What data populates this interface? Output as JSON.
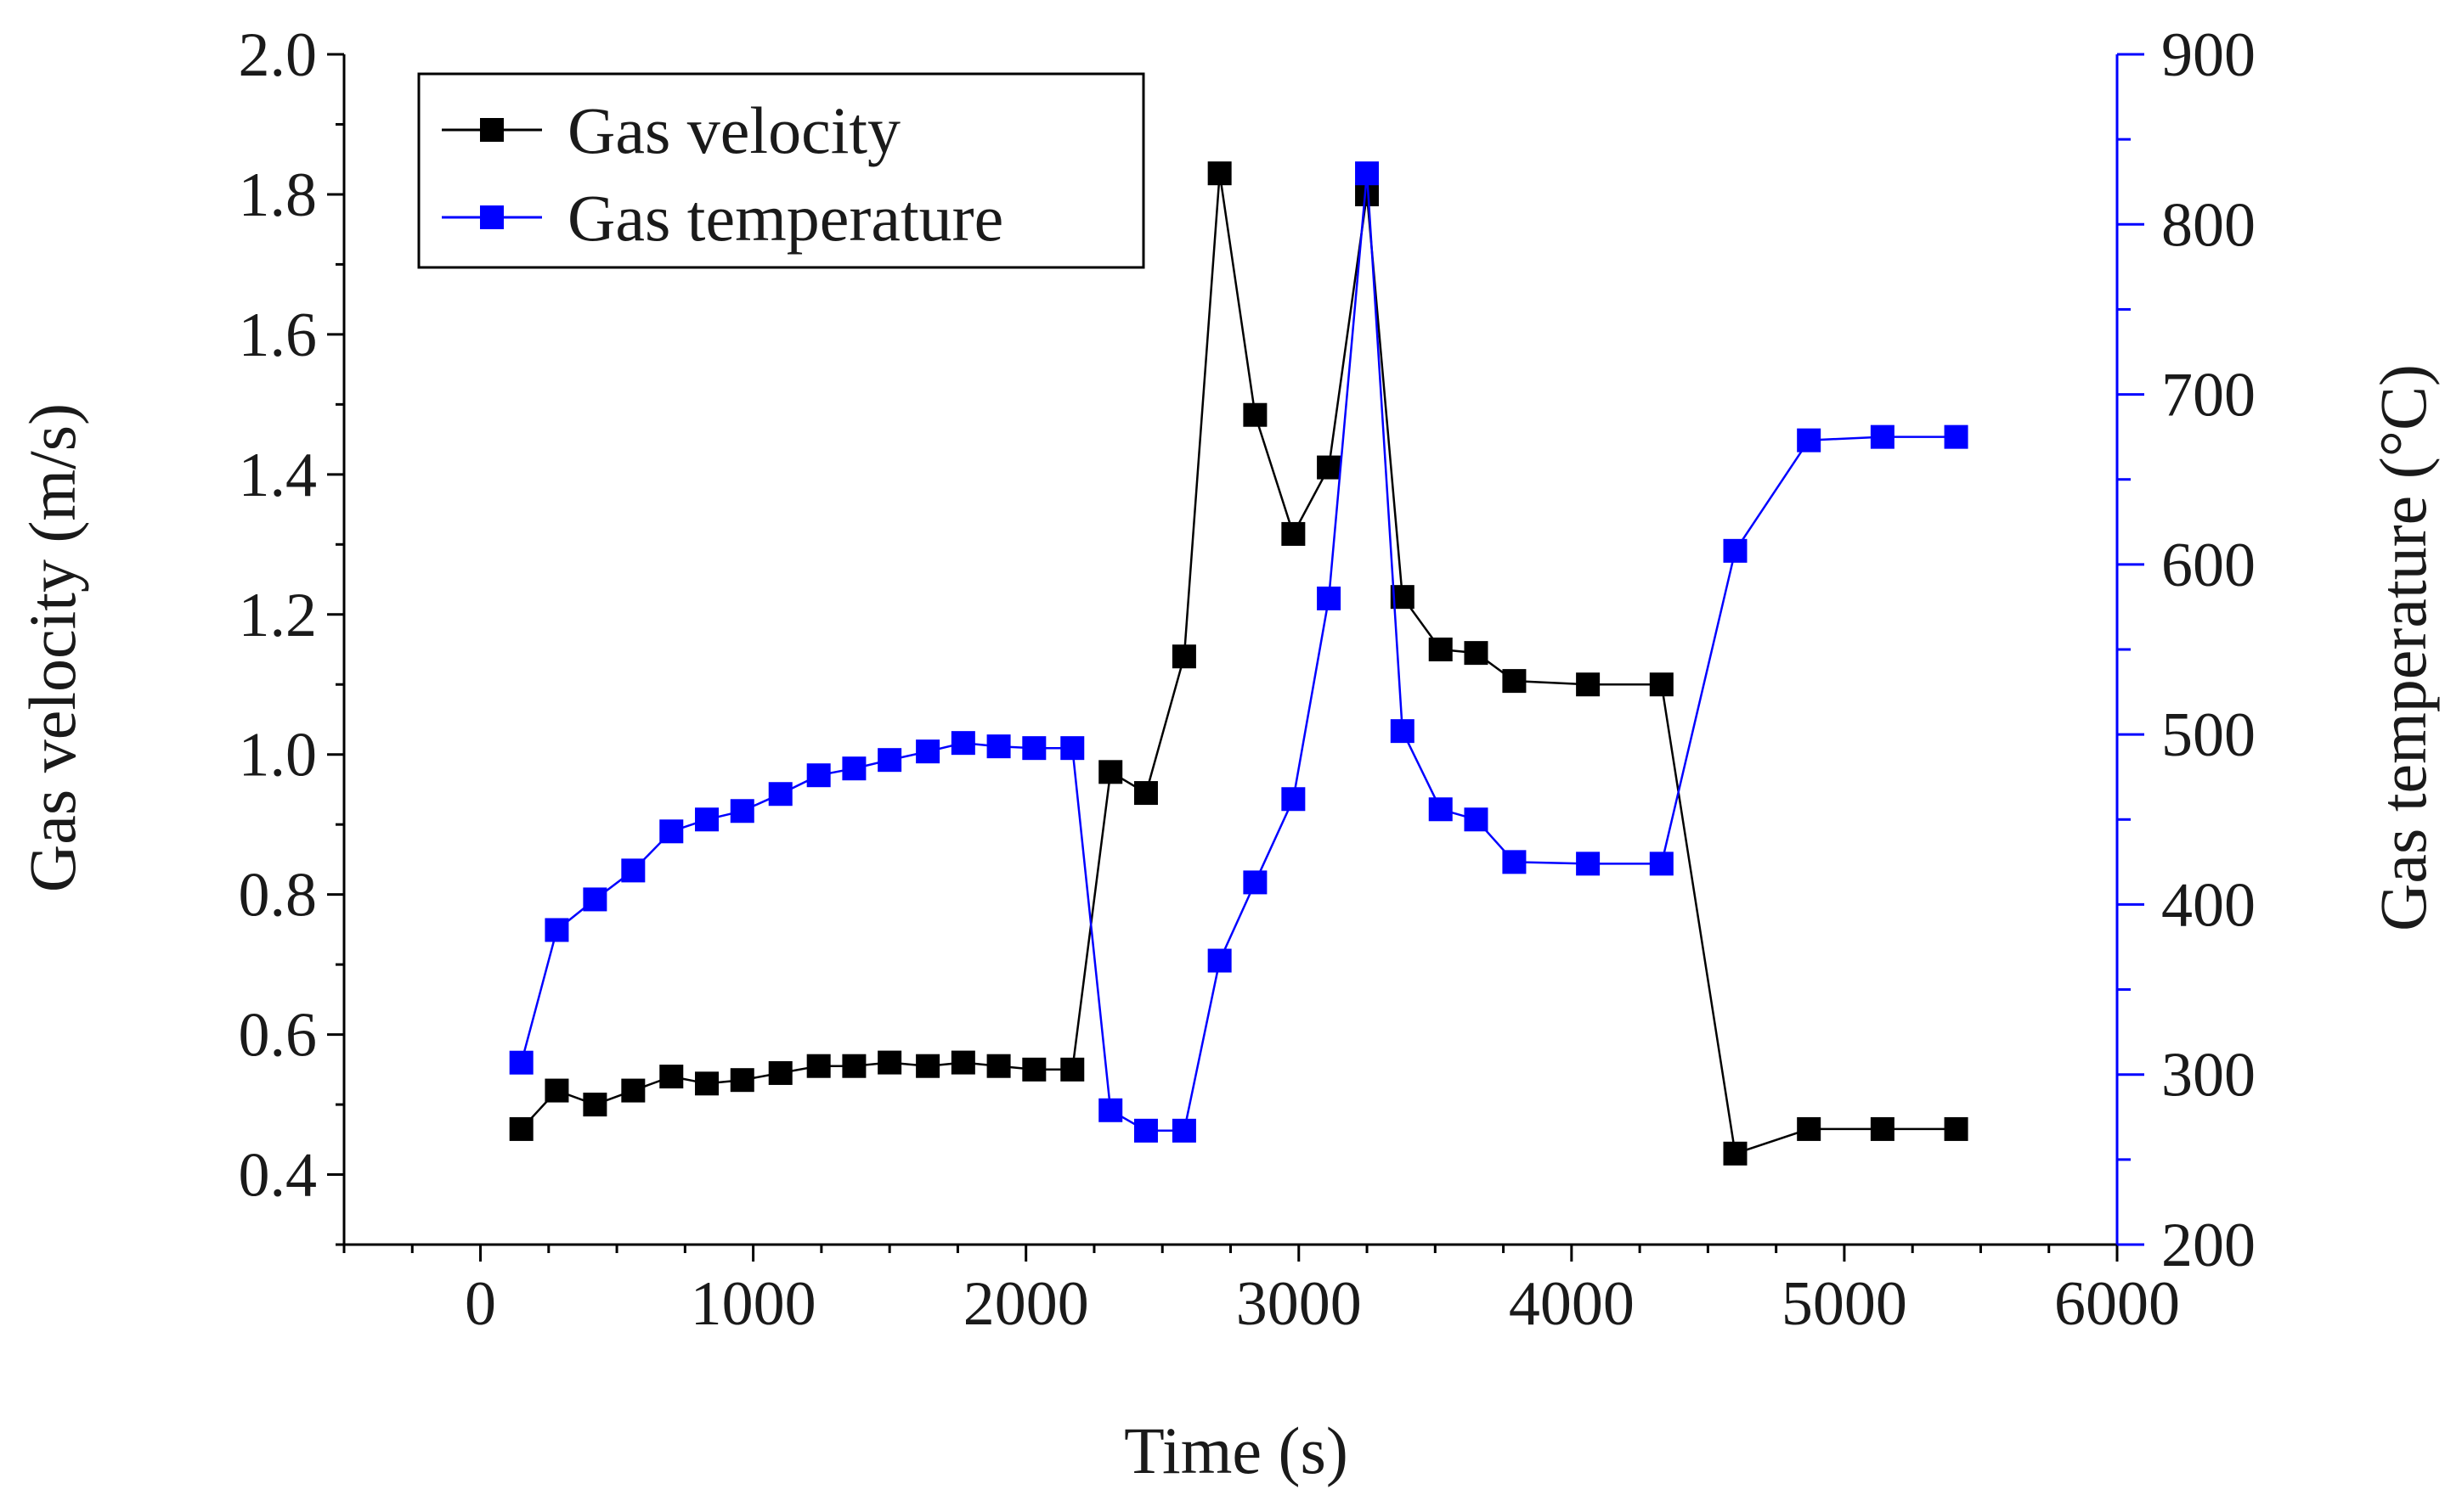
{
  "chart_data": {
    "type": "line",
    "title": "",
    "xlabel": "Time (s)",
    "ylabel_left": "Gas velocity (m/s)",
    "ylabel_right": "Gas temperature (°C)",
    "xlim": [
      -500,
      6000
    ],
    "ylim_left": [
      0.3,
      2.0
    ],
    "ylim_right": [
      200,
      900
    ],
    "x_ticks": [
      0,
      1000,
      2000,
      3000,
      4000,
      5000,
      6000
    ],
    "x_tick_labels": [
      "0",
      "1000",
      "2000",
      "3000",
      "4000",
      "5000",
      "6000"
    ],
    "y_left_ticks": [
      0.4,
      0.6,
      0.8,
      1.0,
      1.2,
      1.4,
      1.6,
      1.8,
      2.0
    ],
    "y_left_tick_labels": [
      "0.4",
      "0.6",
      "0.8",
      "1.0",
      "1.2",
      "1.4",
      "1.6",
      "1.8",
      "2.0"
    ],
    "y_right_ticks": [
      200,
      300,
      400,
      500,
      600,
      700,
      800,
      900
    ],
    "y_right_tick_labels": [
      "200",
      "300",
      "400",
      "500",
      "600",
      "700",
      "800",
      "900"
    ],
    "grid": false,
    "legend_position": "top-left",
    "series": [
      {
        "name": "Gas velocity",
        "axis": "left",
        "color": "#000000",
        "marker": "square",
        "x": [
          150,
          280,
          420,
          560,
          700,
          830,
          960,
          1100,
          1240,
          1370,
          1500,
          1640,
          1770,
          1900,
          2030,
          2170,
          2310,
          2440,
          2580,
          2710,
          2840,
          2980,
          3110,
          3250,
          3380,
          3520,
          3650,
          3790,
          4060,
          4330,
          4600,
          4870,
          5140,
          5410
        ],
        "values": [
          0.465,
          0.52,
          0.5,
          0.52,
          0.54,
          0.53,
          0.535,
          0.545,
          0.555,
          0.555,
          0.56,
          0.555,
          0.56,
          0.555,
          0.55,
          0.55,
          0.975,
          0.945,
          1.14,
          1.83,
          1.485,
          1.315,
          1.41,
          1.8,
          1.225,
          1.15,
          1.145,
          1.105,
          1.1,
          1.1,
          0.43,
          0.465,
          0.465,
          0.465
        ]
      },
      {
        "name": "Gas temperature",
        "axis": "right",
        "color": "#0000ff",
        "marker": "square",
        "x": [
          150,
          280,
          420,
          560,
          700,
          830,
          960,
          1100,
          1240,
          1370,
          1500,
          1640,
          1770,
          1900,
          2030,
          2170,
          2310,
          2440,
          2580,
          2710,
          2840,
          2980,
          3110,
          3250,
          3380,
          3520,
          3650,
          3790,
          4060,
          4330,
          4600,
          4870,
          5140,
          5410
        ],
        "values": [
          307,
          385,
          403,
          420,
          443,
          450,
          455,
          465,
          476,
          480,
          485,
          490,
          495,
          493,
          492,
          492,
          279,
          267,
          267,
          367,
          413,
          462,
          580,
          830,
          502,
          456,
          450,
          425,
          424,
          424,
          608,
          673,
          675,
          675
        ]
      }
    ]
  }
}
